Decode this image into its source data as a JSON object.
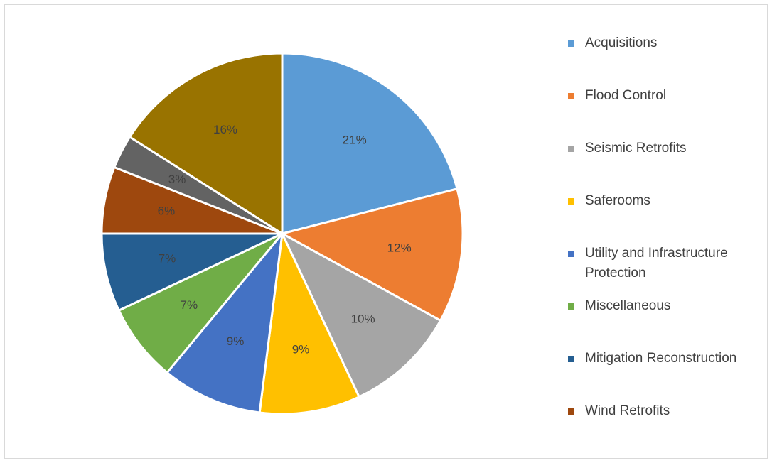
{
  "chart_data": {
    "type": "pie",
    "title": "",
    "legend": "right",
    "categories": [
      "Acquisitions",
      "Flood Control",
      "Seismic Retrofits",
      "Saferooms",
      "Utility and Infrastructure Protection",
      "Miscellaneous",
      "Mitigation Reconstruction",
      "Wind Retrofits",
      "",
      ""
    ],
    "values": [
      21,
      12,
      10,
      9,
      9,
      7,
      7,
      6,
      3,
      16
    ],
    "labels": [
      "21%",
      "12%",
      "10%",
      "9%",
      "9%",
      "7%",
      "7%",
      "6%",
      "3%",
      "16%"
    ],
    "colors": [
      "#5b9bd5",
      "#ed7d31",
      "#a5a5a5",
      "#ffc000",
      "#4472c4",
      "#70ad47",
      "#255e91",
      "#9e480e",
      "#636363",
      "#997300"
    ]
  },
  "legend": {
    "items": [
      {
        "label": "Acquisitions",
        "color": "#5b9bd5"
      },
      {
        "label": "Flood Control",
        "color": "#ed7d31"
      },
      {
        "label": "Seismic Retrofits",
        "color": "#a5a5a5"
      },
      {
        "label": "Saferooms",
        "color": "#ffc000"
      },
      {
        "label": "Utility and Infrastructure Protection",
        "color": "#4472c4"
      },
      {
        "label": "Miscellaneous",
        "color": "#70ad47"
      },
      {
        "label": "Mitigation Reconstruction",
        "color": "#255e91"
      },
      {
        "label": "Wind Retrofits",
        "color": "#9e480e"
      }
    ]
  }
}
